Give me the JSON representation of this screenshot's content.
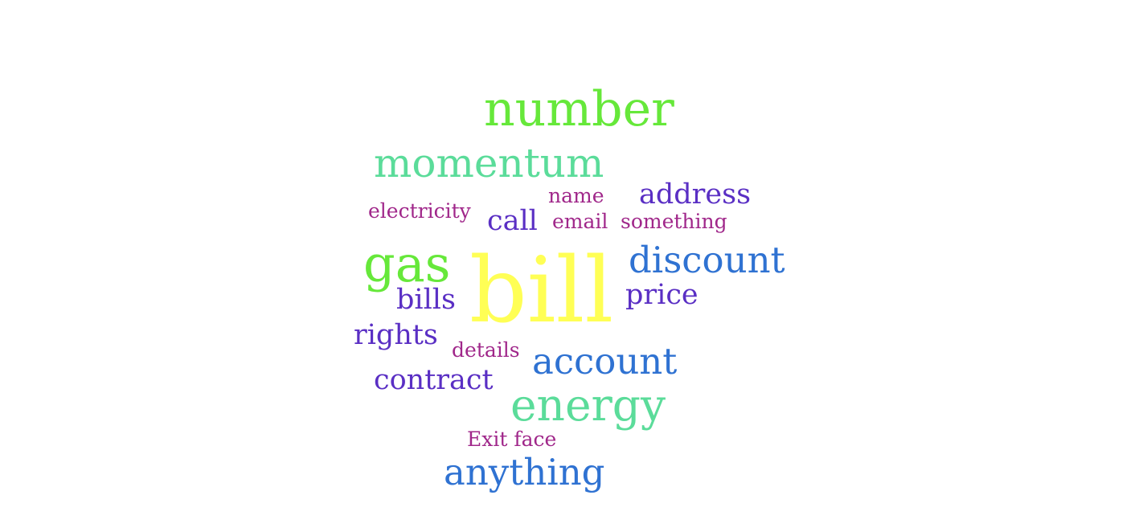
{
  "words": [
    {
      "text": "number",
      "color": "#66e83a"
    },
    {
      "text": "momentum",
      "color": "#5bdc9a"
    },
    {
      "text": "name",
      "color": "#a0278a"
    },
    {
      "text": "address",
      "color": "#5a2fc4"
    },
    {
      "text": "electricity",
      "color": "#a0278a"
    },
    {
      "text": "call",
      "color": "#5a2fc4"
    },
    {
      "text": "email",
      "color": "#a0278a"
    },
    {
      "text": "something",
      "color": "#a0278a"
    },
    {
      "text": "gas",
      "color": "#66e83a"
    },
    {
      "text": "bill",
      "color": "#ffff55"
    },
    {
      "text": "discount",
      "color": "#2f72d2"
    },
    {
      "text": "bills",
      "color": "#5a2fc4"
    },
    {
      "text": "price",
      "color": "#5a2fc4"
    },
    {
      "text": "rights",
      "color": "#5a2fc4"
    },
    {
      "text": "details",
      "color": "#a0278a"
    },
    {
      "text": "account",
      "color": "#2f72d2"
    },
    {
      "text": "contract",
      "color": "#5a2fc4"
    },
    {
      "text": "energy",
      "color": "#5bdc9a"
    },
    {
      "text": "Exit face",
      "color": "#a0278a"
    },
    {
      "text": "anything",
      "color": "#2f72d2"
    }
  ]
}
